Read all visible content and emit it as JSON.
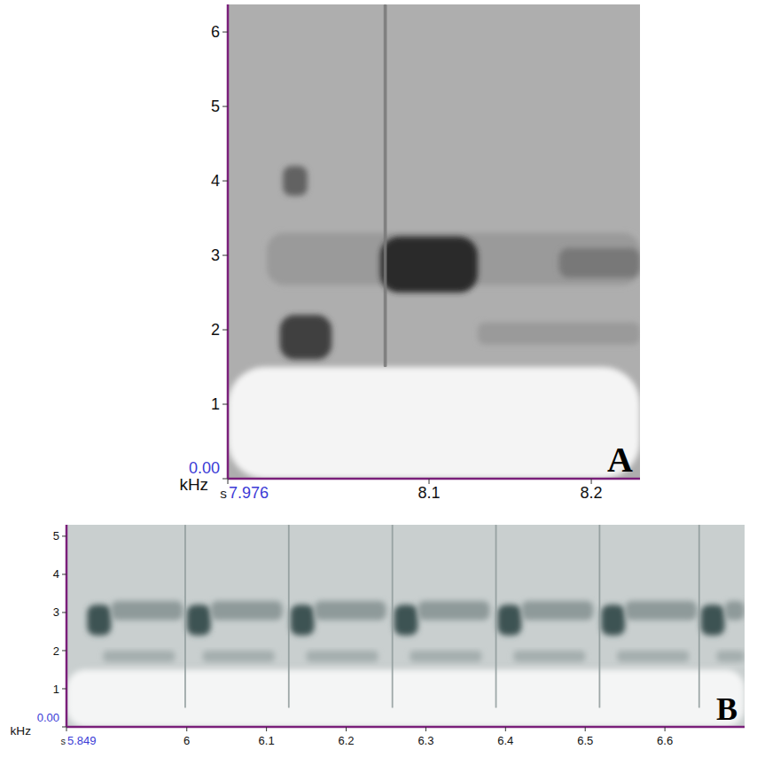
{
  "chart_data": [
    {
      "type": "spectrogram",
      "title": "A",
      "x_label": "s",
      "y_label": "kHz",
      "color": "#1e1e1e",
      "xlim": [
        7.976,
        8.23
      ],
      "ylim": [
        0,
        6.37
      ],
      "xticks": [
        7.976,
        8.1,
        8.2
      ],
      "yticks": [
        {
          "value": 0,
          "label": "0.00"
        },
        1,
        2,
        3,
        4,
        5,
        6
      ],
      "events": [
        {
          "t0": 7.976,
          "t1": 8.23,
          "f0": 0,
          "f1": 1.5,
          "level": 0.05
        },
        {
          "t0": 8.0,
          "t1": 8.23,
          "f0": 2.6,
          "f1": 3.3,
          "level": 0.45
        },
        {
          "t0": 8.01,
          "t1": 8.025,
          "f0": 3.8,
          "f1": 4.2,
          "level": 0.7
        },
        {
          "t0": 8.008,
          "t1": 8.04,
          "f0": 1.6,
          "f1": 2.2,
          "level": 0.85
        },
        {
          "t0": 8.07,
          "t1": 8.13,
          "f0": 2.5,
          "f1": 3.25,
          "level": 0.95
        },
        {
          "t0": 8.13,
          "t1": 8.23,
          "f0": 1.8,
          "f1": 2.1,
          "level": 0.45
        },
        {
          "t0": 8.18,
          "t1": 8.23,
          "f0": 2.7,
          "f1": 3.1,
          "level": 0.6
        },
        {
          "t0": 8.072,
          "t1": 8.074,
          "f0": 1.5,
          "f1": 6.37,
          "level": 0.6
        }
      ]
    },
    {
      "type": "spectrogram",
      "title": "B",
      "x_label": "s",
      "y_label": "kHz",
      "color": "#1c3535",
      "xlim": [
        5.849,
        6.7
      ],
      "ylim": [
        0,
        5.3
      ],
      "xticks": [
        5.849,
        6,
        6.1,
        6.2,
        6.3,
        6.4,
        6.5,
        6.6
      ],
      "yticks": [
        {
          "value": 0,
          "label": "0.00"
        },
        1,
        2,
        3,
        4,
        5
      ],
      "events": [
        {
          "t0": 5.849,
          "t1": 6.7,
          "f0": 0,
          "f1": 1.5,
          "level": 0.05
        },
        {
          "t0": 5.875,
          "t1": 5.905,
          "f0": 2.4,
          "f1": 3.2,
          "level": 0.85
        },
        {
          "t0": 5.905,
          "t1": 5.995,
          "f0": 2.8,
          "f1": 3.3,
          "level": 0.5
        },
        {
          "t0": 5.895,
          "t1": 5.985,
          "f0": 1.7,
          "f1": 2.0,
          "level": 0.4
        },
        {
          "t0": 6.0,
          "t1": 6.03,
          "f0": 2.4,
          "f1": 3.2,
          "level": 0.85
        },
        {
          "t0": 6.03,
          "t1": 6.12,
          "f0": 2.8,
          "f1": 3.3,
          "level": 0.5
        },
        {
          "t0": 6.02,
          "t1": 6.11,
          "f0": 1.7,
          "f1": 2.0,
          "level": 0.4
        },
        {
          "t0": 5.997,
          "t1": 5.999,
          "f0": 0.5,
          "f1": 5.3,
          "level": 0.5
        },
        {
          "t0": 6.13,
          "t1": 6.16,
          "f0": 2.4,
          "f1": 3.2,
          "level": 0.85
        },
        {
          "t0": 6.16,
          "t1": 6.25,
          "f0": 2.8,
          "f1": 3.3,
          "level": 0.5
        },
        {
          "t0": 6.15,
          "t1": 6.24,
          "f0": 1.7,
          "f1": 2.0,
          "level": 0.4
        },
        {
          "t0": 6.127,
          "t1": 6.129,
          "f0": 0.5,
          "f1": 5.3,
          "level": 0.5
        },
        {
          "t0": 6.26,
          "t1": 6.29,
          "f0": 2.4,
          "f1": 3.2,
          "level": 0.85
        },
        {
          "t0": 6.29,
          "t1": 6.38,
          "f0": 2.8,
          "f1": 3.3,
          "level": 0.5
        },
        {
          "t0": 6.28,
          "t1": 6.37,
          "f0": 1.7,
          "f1": 2.0,
          "level": 0.4
        },
        {
          "t0": 6.257,
          "t1": 6.259,
          "f0": 0.5,
          "f1": 5.3,
          "level": 0.5
        },
        {
          "t0": 6.39,
          "t1": 6.42,
          "f0": 2.4,
          "f1": 3.2,
          "level": 0.85
        },
        {
          "t0": 6.42,
          "t1": 6.51,
          "f0": 2.8,
          "f1": 3.3,
          "level": 0.5
        },
        {
          "t0": 6.41,
          "t1": 6.5,
          "f0": 1.7,
          "f1": 2.0,
          "level": 0.4
        },
        {
          "t0": 6.387,
          "t1": 6.389,
          "f0": 0.5,
          "f1": 5.3,
          "level": 0.5
        },
        {
          "t0": 6.52,
          "t1": 6.55,
          "f0": 2.4,
          "f1": 3.2,
          "level": 0.85
        },
        {
          "t0": 6.55,
          "t1": 6.64,
          "f0": 2.8,
          "f1": 3.3,
          "level": 0.5
        },
        {
          "t0": 6.54,
          "t1": 6.63,
          "f0": 1.7,
          "f1": 2.0,
          "level": 0.4
        },
        {
          "t0": 6.517,
          "t1": 6.519,
          "f0": 0.5,
          "f1": 5.3,
          "level": 0.5
        },
        {
          "t0": 6.645,
          "t1": 6.675,
          "f0": 2.4,
          "f1": 3.2,
          "level": 0.85
        },
        {
          "t0": 6.675,
          "t1": 6.7,
          "f0": 2.8,
          "f1": 3.3,
          "level": 0.5
        },
        {
          "t0": 6.665,
          "t1": 6.7,
          "f0": 1.7,
          "f1": 2.0,
          "level": 0.4
        },
        {
          "t0": 6.642,
          "t1": 6.644,
          "f0": 0.5,
          "f1": 5.3,
          "level": 0.5
        }
      ]
    }
  ]
}
